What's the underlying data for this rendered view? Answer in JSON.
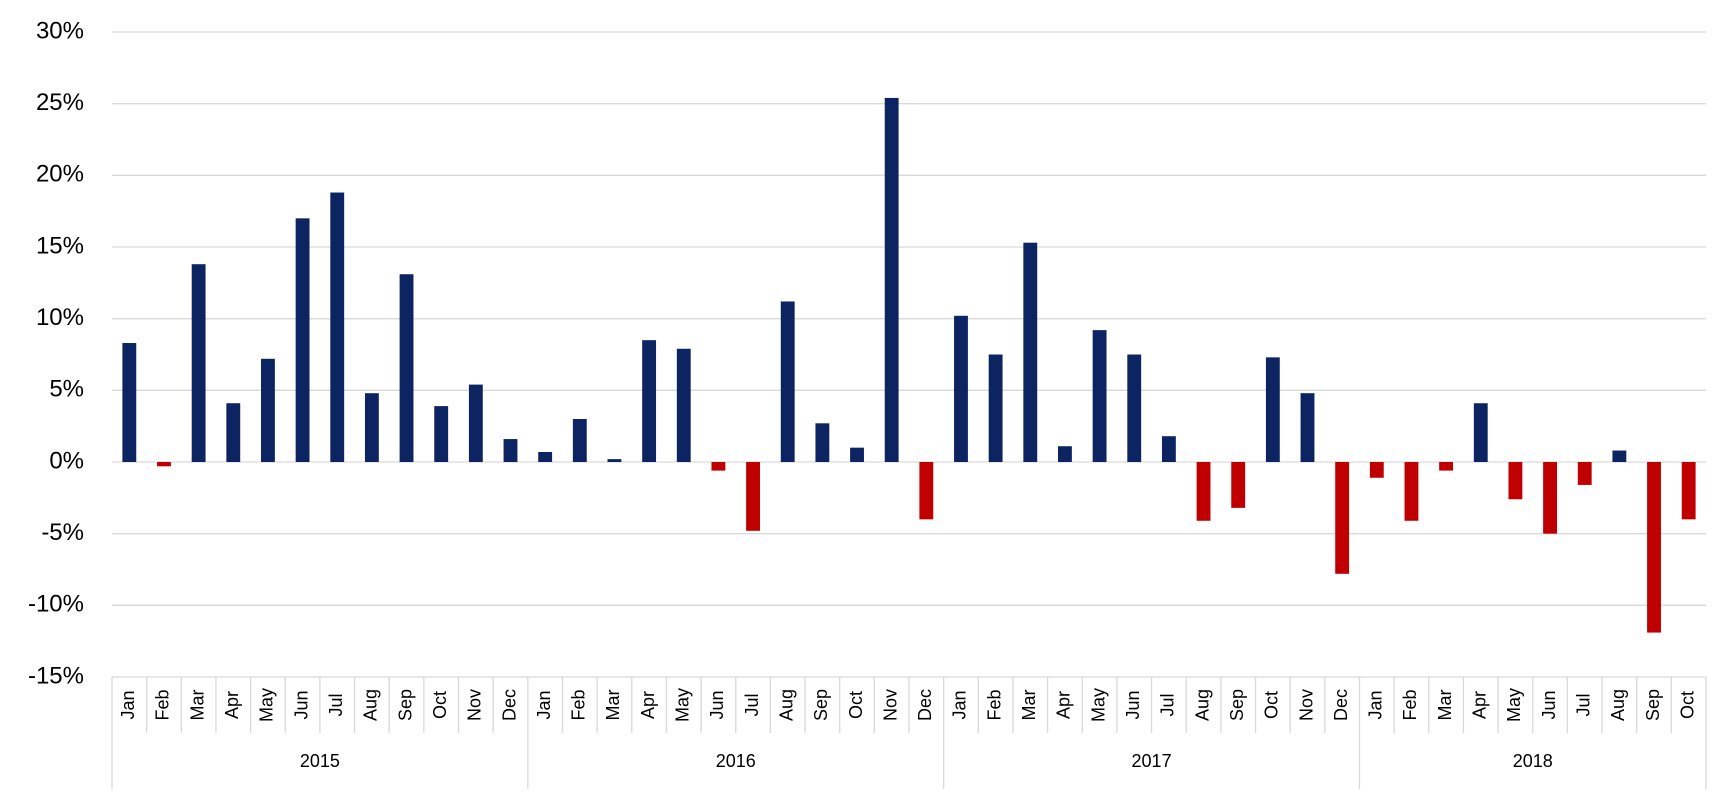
{
  "chart_data": {
    "type": "bar",
    "groups": [
      {
        "name": "2015",
        "categories": [
          "Jan",
          "Feb",
          "Mar",
          "Apr",
          "May",
          "Jun",
          "Jul",
          "Aug",
          "Sep",
          "Oct",
          "Nov",
          "Dec"
        ]
      },
      {
        "name": "2016",
        "categories": [
          "Jan",
          "Feb",
          "Mar",
          "Apr",
          "May",
          "Jun",
          "Jul",
          "Aug",
          "Sep",
          "Oct",
          "Nov",
          "Dec"
        ]
      },
      {
        "name": "2017",
        "categories": [
          "Jan",
          "Feb",
          "Mar",
          "Apr",
          "May",
          "Jun",
          "Jul",
          "Aug",
          "Sep",
          "Oct",
          "Nov",
          "Dec"
        ]
      },
      {
        "name": "2018",
        "categories": [
          "Jan",
          "Feb",
          "Mar",
          "Apr",
          "May",
          "Jun",
          "Jul",
          "Aug",
          "Sep",
          "Oct"
        ]
      }
    ],
    "values": [
      8.3,
      -0.3,
      13.8,
      4.1,
      7.2,
      17.0,
      18.8,
      4.8,
      13.1,
      3.9,
      5.4,
      1.6,
      0.7,
      3.0,
      0.2,
      8.5,
      7.9,
      -0.6,
      -4.8,
      11.2,
      2.7,
      1.0,
      25.4,
      -4.0,
      10.2,
      7.5,
      15.3,
      1.1,
      9.2,
      7.5,
      1.8,
      -4.1,
      -3.2,
      7.3,
      4.8,
      -7.8,
      -1.1,
      -4.1,
      -0.6,
      4.1,
      -2.6,
      -5.0,
      -1.6,
      0.8,
      -11.9,
      -4.0
    ],
    "color": "#0d2463",
    "negative_color": "#c00000",
    "ylim": [
      -15,
      30
    ],
    "yticks": [
      {
        "value": -15,
        "label": "-15%"
      },
      {
        "value": -10,
        "label": "-10%"
      },
      {
        "value": -5,
        "label": "-5%"
      },
      {
        "value": 0,
        "label": "0%"
      },
      {
        "value": 5,
        "label": "5%"
      },
      {
        "value": 10,
        "label": "10%"
      },
      {
        "value": 15,
        "label": "15%"
      },
      {
        "value": 20,
        "label": "20%"
      },
      {
        "value": 25,
        "label": "25%"
      },
      {
        "value": 30,
        "label": "30%"
      }
    ],
    "grid": true
  }
}
